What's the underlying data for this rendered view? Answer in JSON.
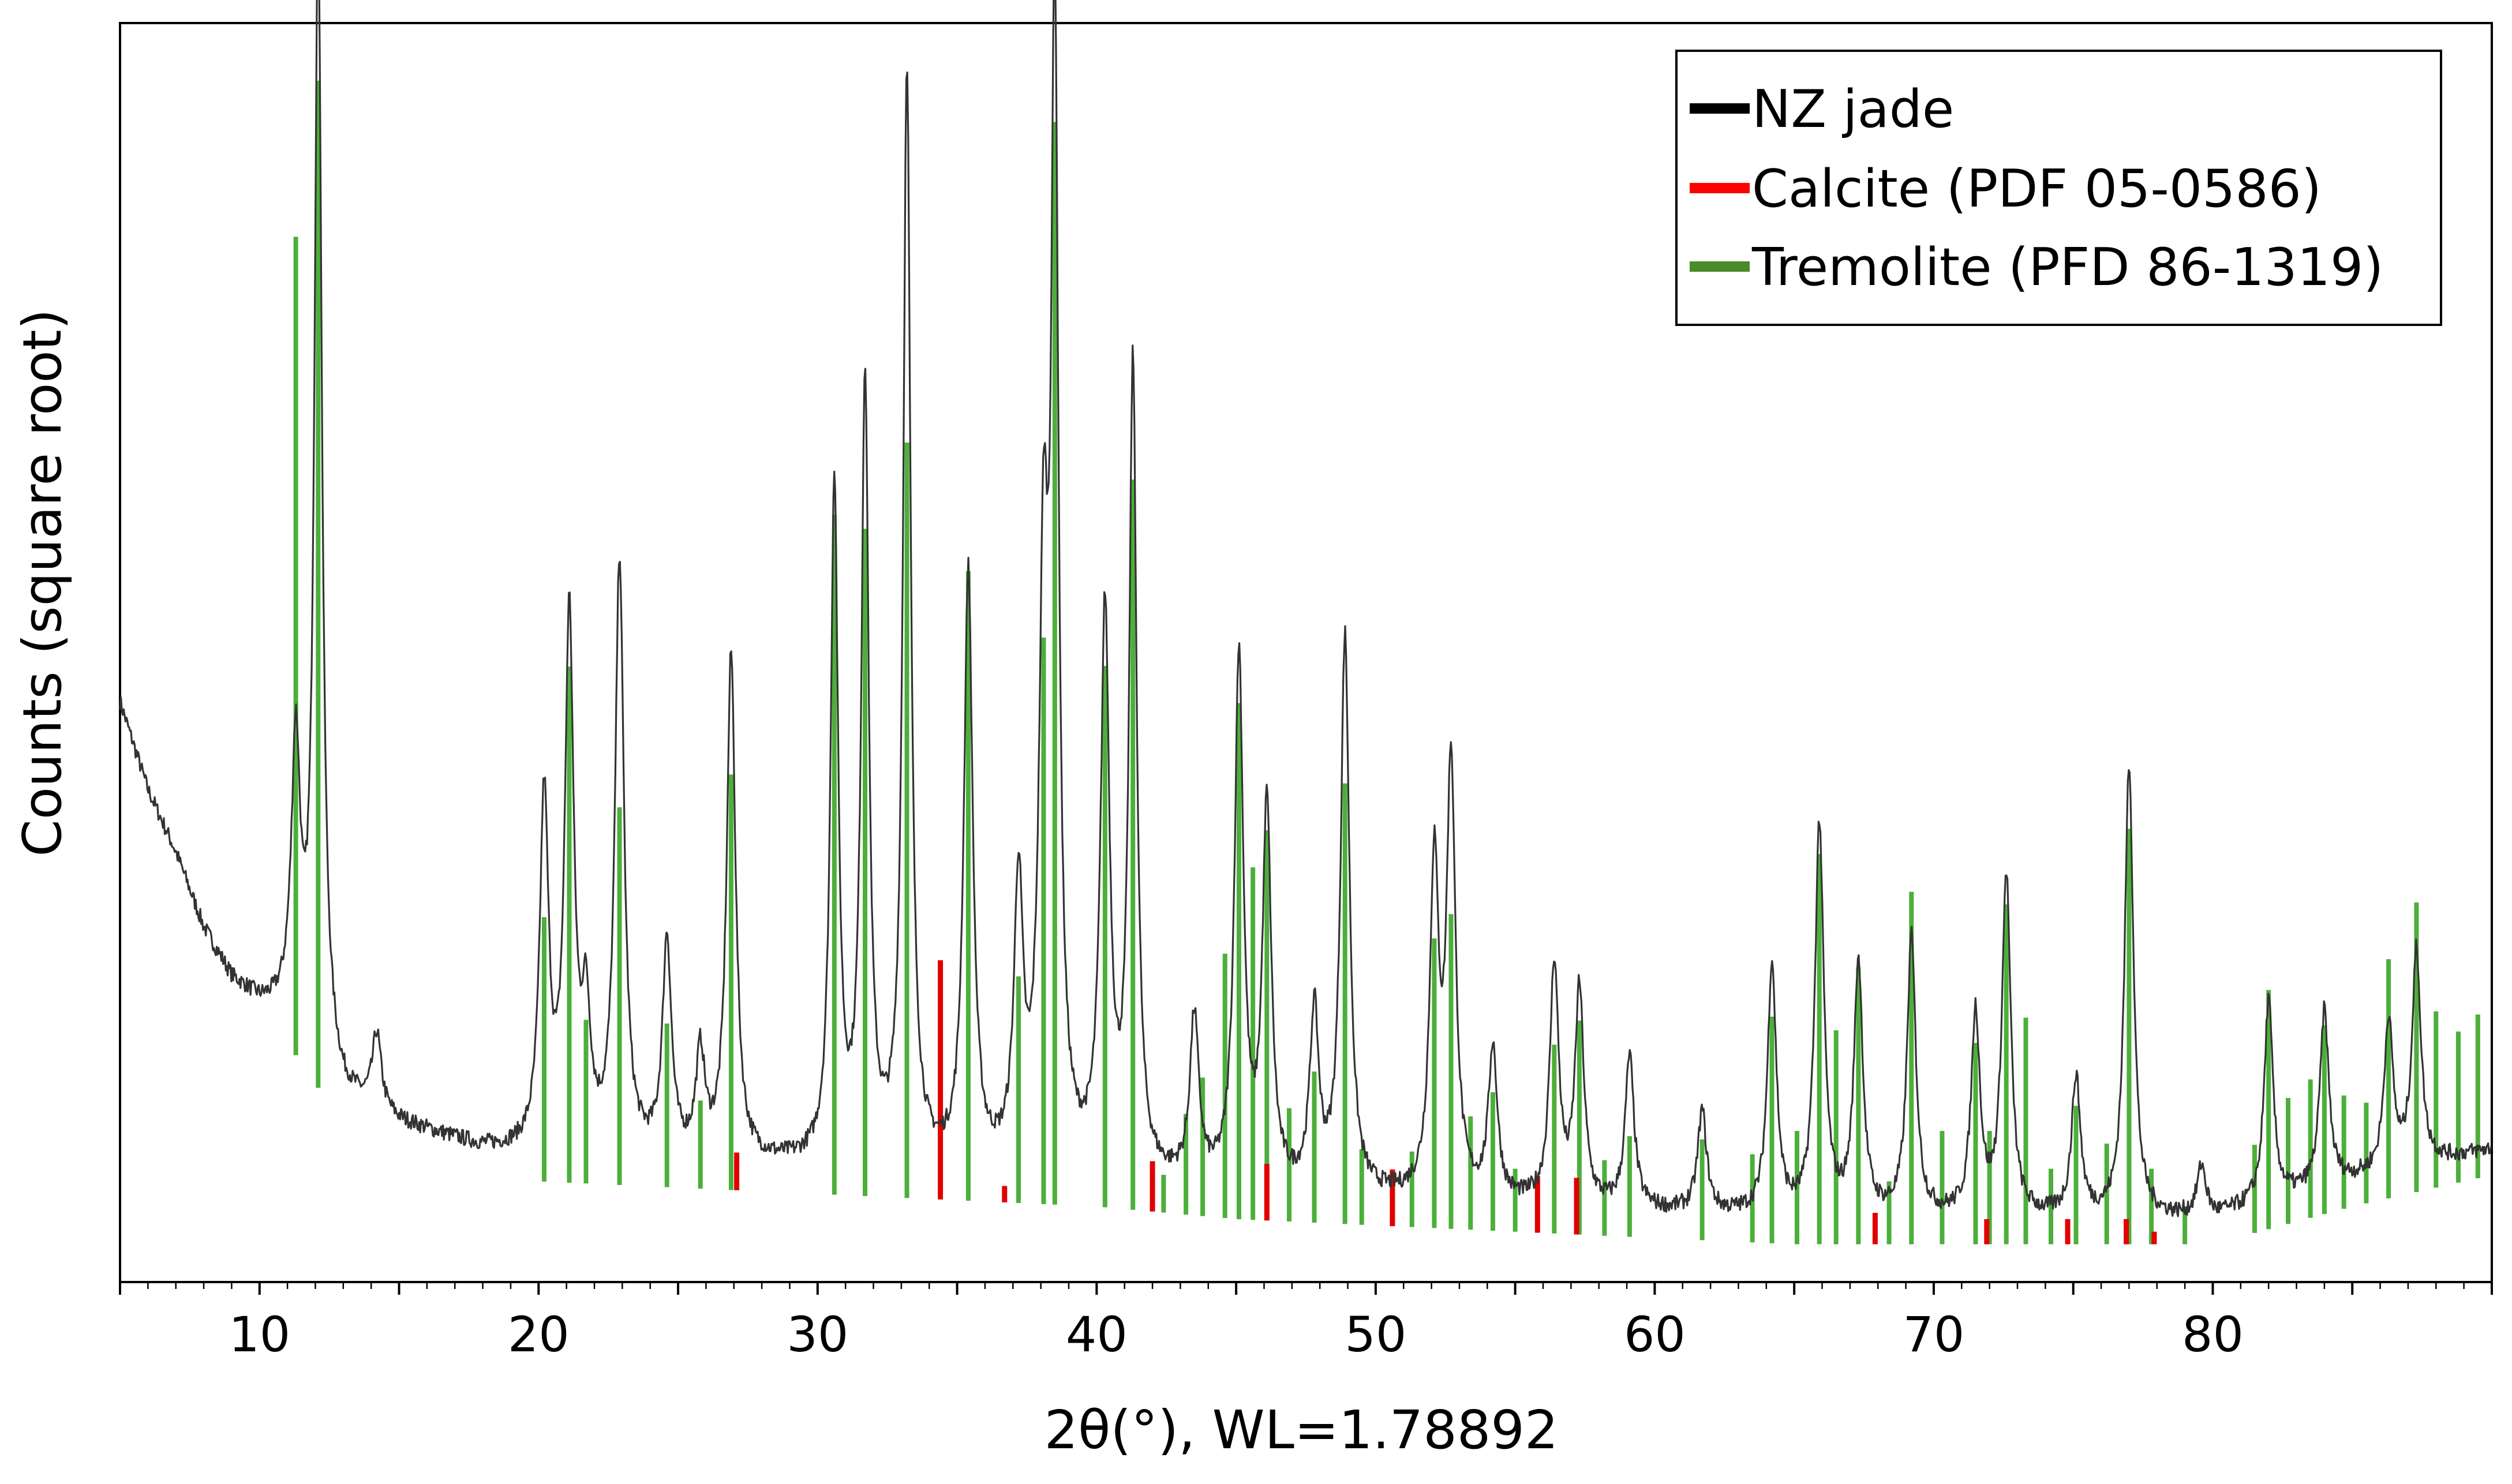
{
  "chart_data": {
    "type": "line",
    "xlabel": "2θ(°), WL=1.78892",
    "ylabel": "Counts (square root)",
    "xlim": [
      5,
      90
    ],
    "ylim": [
      0,
      100
    ],
    "x_ticks": [
      10,
      20,
      30,
      40,
      50,
      60,
      70,
      80
    ],
    "y_ticks_labeled": false,
    "grid": false,
    "legend_placement": "top-right",
    "legend": [
      {
        "label": "NZ jade",
        "color": "#000000"
      },
      {
        "label": "Calcite (PDF 05-0586)",
        "color": "#ff0000"
      },
      {
        "label": "Tremolite (PFD 86-1319)",
        "color": "#4a8a2a"
      }
    ],
    "series": [
      {
        "name": "NZ jade",
        "kind": "profile",
        "color": "#333333",
        "baseline": [
          [
            5,
            46
          ],
          [
            6,
            39
          ],
          [
            7,
            34
          ],
          [
            8,
            28
          ],
          [
            9,
            24
          ],
          [
            10,
            22
          ],
          [
            11,
            21
          ],
          [
            13,
            14.5
          ],
          [
            15,
            12.5
          ],
          [
            18,
            10.5
          ],
          [
            20,
            10
          ],
          [
            25,
            9.5
          ],
          [
            30,
            9
          ],
          [
            35,
            8.5
          ],
          [
            40,
            8
          ],
          [
            45,
            7
          ],
          [
            50,
            6.5
          ],
          [
            55,
            6
          ],
          [
            60,
            5.5
          ],
          [
            65,
            5
          ],
          [
            70,
            5
          ],
          [
            75,
            5
          ],
          [
            80,
            5
          ],
          [
            85,
            8
          ],
          [
            90,
            10.5
          ]
        ],
        "peaks": [
          [
            11.3,
            22
          ],
          [
            12.1,
            90
          ],
          [
            14.2,
            6
          ],
          [
            20.2,
            28
          ],
          [
            21.1,
            42
          ],
          [
            21.7,
            10
          ],
          [
            22.9,
            47
          ],
          [
            24.6,
            17
          ],
          [
            25.8,
            8
          ],
          [
            26.9,
            40
          ],
          [
            30.6,
            54
          ],
          [
            31.7,
            62
          ],
          [
            33.2,
            87
          ],
          [
            35.4,
            47
          ],
          [
            37.2,
            22
          ],
          [
            38.1,
            44
          ],
          [
            38.5,
            88
          ],
          [
            40.3,
            44
          ],
          [
            41.3,
            64
          ],
          [
            43.5,
            13
          ],
          [
            45.1,
            42
          ],
          [
            46.1,
            30
          ],
          [
            47.8,
            14
          ],
          [
            48.9,
            44
          ],
          [
            52.1,
            26
          ],
          [
            52.7,
            34
          ],
          [
            54.2,
            12
          ],
          [
            56.4,
            19
          ],
          [
            57.3,
            17
          ],
          [
            59.1,
            12
          ],
          [
            61.7,
            8
          ],
          [
            64.2,
            20
          ],
          [
            65.9,
            31
          ],
          [
            67.3,
            20
          ],
          [
            69.2,
            22
          ],
          [
            71.5,
            16
          ],
          [
            72.6,
            27
          ],
          [
            75.1,
            11
          ],
          [
            77.0,
            36
          ],
          [
            79.6,
            4
          ],
          [
            82.0,
            16
          ],
          [
            84.0,
            14
          ],
          [
            86.3,
            12
          ],
          [
            87.3,
            17
          ]
        ]
      },
      {
        "name": "Calcite (PDF 05-0586)",
        "kind": "stick",
        "color": "#e00000",
        "sticks": [
          [
            27.1,
            3
          ],
          [
            34.4,
            19
          ],
          [
            36.7,
            1.3
          ],
          [
            42.0,
            4
          ],
          [
            46.1,
            4.5
          ],
          [
            50.6,
            4.5
          ],
          [
            55.8,
            4.5
          ],
          [
            57.2,
            4.5
          ],
          [
            67.9,
            2.5
          ],
          [
            71.9,
            2
          ],
          [
            74.8,
            2
          ],
          [
            76.9,
            2
          ],
          [
            77.9,
            1
          ]
        ]
      },
      {
        "name": "Tremolite (PFD 86-1319)",
        "kind": "stick",
        "color": "#4caf3a",
        "sticks": [
          [
            11.3,
            65
          ],
          [
            12.1,
            80
          ],
          [
            20.2,
            21
          ],
          [
            21.1,
            41
          ],
          [
            21.7,
            13
          ],
          [
            22.9,
            30
          ],
          [
            24.6,
            13
          ],
          [
            25.8,
            7
          ],
          [
            26.9,
            33
          ],
          [
            30.6,
            54
          ],
          [
            31.7,
            53
          ],
          [
            33.2,
            60
          ],
          [
            35.4,
            50
          ],
          [
            37.2,
            18
          ],
          [
            38.1,
            45
          ],
          [
            38.5,
            86
          ],
          [
            40.3,
            43
          ],
          [
            41.3,
            58
          ],
          [
            42.4,
            3
          ],
          [
            43.2,
            8
          ],
          [
            43.8,
            11
          ],
          [
            44.6,
            21
          ],
          [
            45.1,
            41
          ],
          [
            45.6,
            28
          ],
          [
            46.1,
            31
          ],
          [
            46.9,
            9
          ],
          [
            47.8,
            12
          ],
          [
            48.9,
            35
          ],
          [
            49.5,
            6
          ],
          [
            51.3,
            6
          ],
          [
            52.1,
            23
          ],
          [
            52.7,
            25
          ],
          [
            53.4,
            9
          ],
          [
            54.2,
            11
          ],
          [
            55.0,
            5
          ],
          [
            56.4,
            15
          ],
          [
            57.3,
            17
          ],
          [
            58.2,
            6
          ],
          [
            59.1,
            8
          ],
          [
            61.7,
            8
          ],
          [
            63.5,
            7
          ],
          [
            64.2,
            18
          ],
          [
            65.1,
            9
          ],
          [
            65.9,
            31
          ],
          [
            66.5,
            17
          ],
          [
            67.3,
            22
          ],
          [
            68.4,
            5
          ],
          [
            69.2,
            28
          ],
          [
            70.3,
            9
          ],
          [
            71.5,
            16
          ],
          [
            72.0,
            9
          ],
          [
            72.6,
            27
          ],
          [
            73.3,
            18
          ],
          [
            74.2,
            6
          ],
          [
            75.1,
            11
          ],
          [
            76.2,
            8
          ],
          [
            77.0,
            33
          ],
          [
            77.8,
            6
          ],
          [
            79.0,
            3
          ],
          [
            81.5,
            7
          ],
          [
            82.0,
            19
          ],
          [
            82.7,
            10
          ],
          [
            83.5,
            11
          ],
          [
            84.0,
            15
          ],
          [
            84.7,
            9
          ],
          [
            85.5,
            8
          ],
          [
            86.3,
            19
          ],
          [
            87.3,
            23
          ],
          [
            88.0,
            14
          ],
          [
            88.8,
            12
          ],
          [
            89.5,
            13
          ]
        ]
      }
    ]
  }
}
